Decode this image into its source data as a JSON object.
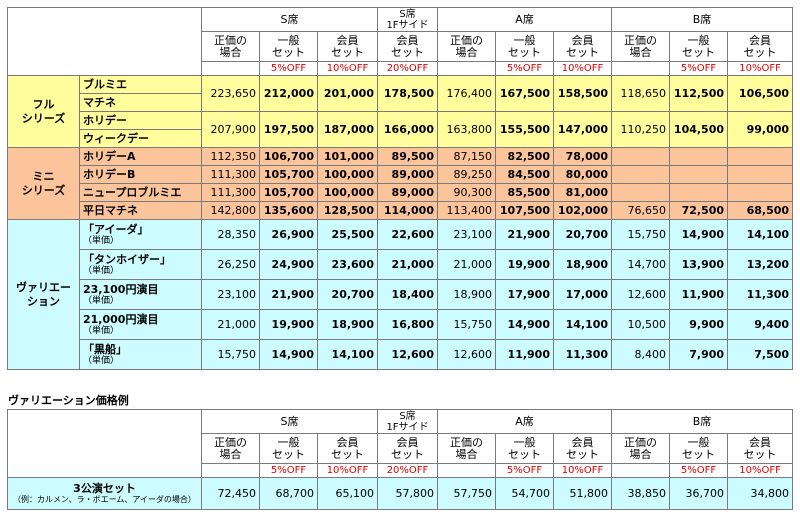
{
  "main_table": {
    "seat_headers": [
      "S席",
      "S席\n1Fサイド",
      "A席",
      "B席"
    ],
    "col_headers": {
      "regular": "正価の\n場合",
      "general": "一般\nセット",
      "member": "会員\nセット"
    },
    "discounts": [
      "5%OFF",
      "10%OFF",
      "20%OFF",
      "5%OFF",
      "10%OFF",
      "5%OFF",
      "10%OFF"
    ],
    "groups": [
      {
        "category": "フル\nシリーズ",
        "rows": [
          {
            "name": "ブルミエ",
            "values": []
          },
          {
            "name": "マチネ",
            "values": [
              "223,650",
              "212,000",
              "201,000",
              "178,500",
              "176,400",
              "167,500",
              "158,500",
              "118,650",
              "112,500",
              "106,500"
            ]
          },
          {
            "name": "ホリデー",
            "values": []
          },
          {
            "name": "ウィークデー",
            "values": [
              "207,900",
              "197,500",
              "187,000",
              "166,000",
              "163,800",
              "155,500",
              "147,000",
              "110,250",
              "104,500",
              "99,000"
            ]
          }
        ]
      },
      {
        "category": "ミニ\nシリーズ",
        "rows": [
          {
            "name": "ホリデーA",
            "values": [
              "112,350",
              "106,700",
              "101,000",
              "89,500",
              "87,150",
              "82,500",
              "78,000",
              "",
              "",
              ""
            ]
          },
          {
            "name": "ホリデーB",
            "values": [
              "111,300",
              "105,700",
              "100,000",
              "89,000",
              "89,250",
              "84,500",
              "80,000",
              "",
              "",
              ""
            ]
          },
          {
            "name": "ニュープロブルミエ",
            "values": [
              "111,300",
              "105,700",
              "100,000",
              "89,000",
              "90,300",
              "85,500",
              "81,000",
              "",
              "",
              ""
            ]
          },
          {
            "name": "平日マチネ",
            "values": [
              "142,800",
              "135,600",
              "128,500",
              "114,000",
              "113,400",
              "107,500",
              "102,000",
              "76,650",
              "72,500",
              "68,500"
            ]
          }
        ]
      },
      {
        "category": "ヴァリエー\nション",
        "rows": [
          {
            "name": "「アイーダ」",
            "sub": "（単価）",
            "values": [
              "28,350",
              "26,900",
              "25,500",
              "22,600",
              "23,100",
              "21,900",
              "20,700",
              "15,750",
              "14,900",
              "14,100"
            ]
          },
          {
            "name": "「タンホイザー」",
            "sub": "（単価）",
            "values": [
              "26,250",
              "24,900",
              "23,600",
              "21,000",
              "21,000",
              "19,900",
              "18,900",
              "14,700",
              "13,900",
              "13,200"
            ]
          },
          {
            "name": "23,100円演目",
            "sub": "（単価）",
            "values": [
              "23,100",
              "21,900",
              "20,700",
              "18,400",
              "18,900",
              "17,900",
              "17,000",
              "12,600",
              "11,900",
              "11,300"
            ]
          },
          {
            "name": "21,000円演目",
            "sub": "（単価）",
            "values": [
              "21,000",
              "19,900",
              "18,900",
              "16,800",
              "15,750",
              "14,900",
              "14,100",
              "10,500",
              "9,900",
              "9,400"
            ]
          },
          {
            "name": "「黒船」",
            "sub": "（単価）",
            "values": [
              "15,750",
              "14,900",
              "14,100",
              "12,600",
              "12,600",
              "11,900",
              "11,300",
              "8,400",
              "7,900",
              "7,500"
            ]
          }
        ]
      }
    ]
  },
  "second_title": "ヴァリエーション価格例",
  "second_table": {
    "row_name": "3公演セット",
    "row_sub": "（例：カルメン、ラ・ボエーム、アイーダの場合）",
    "values": [
      "72,450",
      "68,700",
      "65,100",
      "57,800",
      "57,750",
      "54,700",
      "51,800",
      "38,850",
      "36,700",
      "34,800"
    ]
  },
  "colors": {
    "full": "#fffd9c",
    "mini": "#fcc49a",
    "variation": "#ccfcff",
    "discount": "#e00000"
  }
}
